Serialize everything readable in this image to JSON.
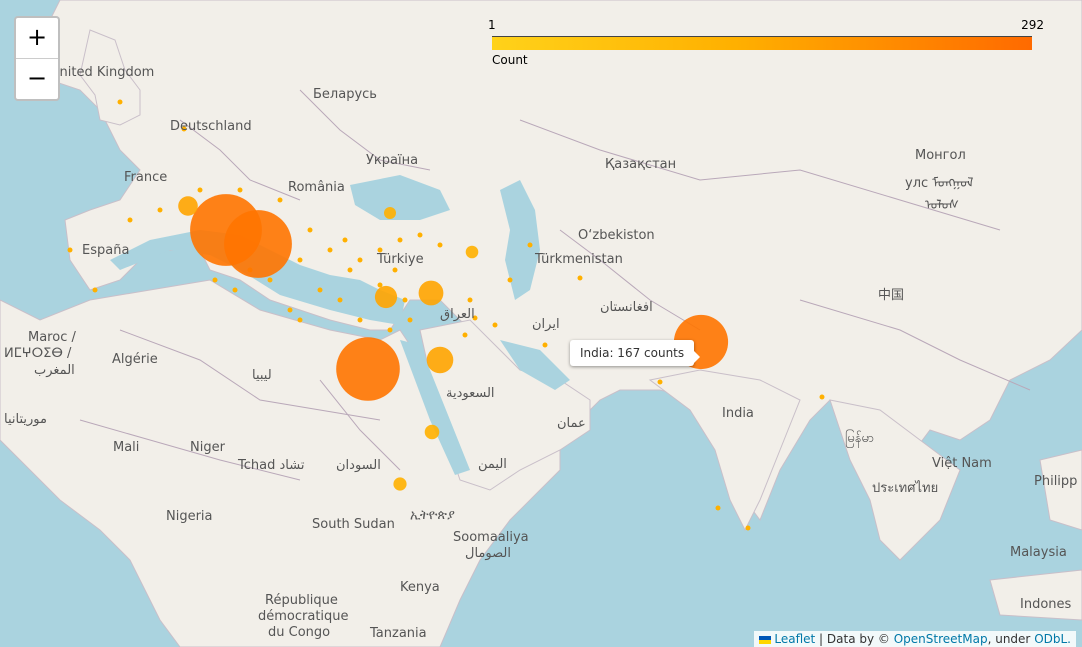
{
  "legend": {
    "min": "1",
    "max": "292",
    "caption": "Count"
  },
  "tooltip": {
    "text": "India: 167 counts"
  },
  "zoom": {
    "in_label": "+",
    "out_label": "−"
  },
  "attribution": {
    "leaflet": "Leaflet",
    "data_by": "| Data by ©",
    "osm": "OpenStreetMap",
    "under": ", under",
    "license": "ODbL."
  },
  "colors": {
    "water": "#aad3df",
    "land": "#f2efe9",
    "border": "#b9a8b9",
    "small": "#ffb000",
    "medium": "#ffa400",
    "large": "#ff7400"
  },
  "labels": [
    {
      "id": "uk",
      "text": "United Kingdom"
    },
    {
      "id": "belarus",
      "text": "Беларусь"
    },
    {
      "id": "deutschland",
      "text": "Deutschland"
    },
    {
      "id": "ukraina",
      "text": "Україна"
    },
    {
      "id": "kazakhstan",
      "text": "Қазақстан"
    },
    {
      "id": "mongol",
      "text": "Монгол"
    },
    {
      "id": "mongol2",
      "text": "улс ᠮᠣᠩᠭᠣᠯ"
    },
    {
      "id": "mongol3",
      "text": "ᠤᠯᠤᠰ"
    },
    {
      "id": "france",
      "text": "France"
    },
    {
      "id": "romania",
      "text": "România"
    },
    {
      "id": "espana",
      "text": "España"
    },
    {
      "id": "uzbek",
      "text": "O‘zbekiston"
    },
    {
      "id": "turkiye",
      "text": "Türkiye"
    },
    {
      "id": "turkmen",
      "text": "Türkmenistan"
    },
    {
      "id": "china",
      "text": "中国"
    },
    {
      "id": "afghan",
      "text": "افغانستان"
    },
    {
      "id": "iraq",
      "text": "العراق"
    },
    {
      "id": "iran",
      "text": "ایران"
    },
    {
      "id": "maroc",
      "text": "Maroc /"
    },
    {
      "id": "maroc2",
      "text": "ⵍⵎⵖⵔⵉⴱ /"
    },
    {
      "id": "maroc3",
      "text": "المغرب"
    },
    {
      "id": "algerie",
      "text": "Algérie"
    },
    {
      "id": "libya",
      "text": "ليبيا"
    },
    {
      "id": "saudi",
      "text": "السعودية"
    },
    {
      "id": "oman",
      "text": "عمان"
    },
    {
      "id": "india",
      "text": "India"
    },
    {
      "id": "mauritania",
      "text": "موريتانيا"
    },
    {
      "id": "mali",
      "text": "Mali"
    },
    {
      "id": "niger",
      "text": "Niger"
    },
    {
      "id": "tchad",
      "text": "Tchad تشاد"
    },
    {
      "id": "sudan",
      "text": "السودان"
    },
    {
      "id": "yemen",
      "text": "اليمن"
    },
    {
      "id": "myanmar",
      "text": "မြန်မာ"
    },
    {
      "id": "vietnam",
      "text": "Việt Nam"
    },
    {
      "id": "thailand",
      "text": "ประเทศไทย"
    },
    {
      "id": "philippines",
      "text": "Philipp"
    },
    {
      "id": "nigeria",
      "text": "Nigeria"
    },
    {
      "id": "southsudan",
      "text": "South Sudan"
    },
    {
      "id": "ethiopia",
      "text": "ኢትዮጵያ"
    },
    {
      "id": "somalia",
      "text": "Soomaaliya"
    },
    {
      "id": "somalia2",
      "text": "الصومال"
    },
    {
      "id": "kenya",
      "text": "Kenya"
    },
    {
      "id": "malaysia",
      "text": "Malaysia"
    },
    {
      "id": "rdc",
      "text": "République"
    },
    {
      "id": "rdc2",
      "text": "démocratique"
    },
    {
      "id": "rdc3",
      "text": "du Congo"
    },
    {
      "id": "tanzania",
      "text": "Tanzania"
    },
    {
      "id": "indonesia",
      "text": "Indones"
    }
  ],
  "markers": [
    {
      "name": "India",
      "count": 167
    },
    {
      "name": "Italy",
      "count": 292
    },
    {
      "name": "Italy-south",
      "count": 260
    },
    {
      "name": "Egypt",
      "count": 230
    },
    {
      "name": "Saudi Arabia",
      "count": 40
    },
    {
      "name": "Syria",
      "count": 35
    },
    {
      "name": "Cyprus",
      "count": 28
    },
    {
      "name": "France-south",
      "count": 22
    },
    {
      "name": "Sudan",
      "count": 12
    },
    {
      "name": "Ethiopia",
      "count": 10
    },
    {
      "name": "Turkey-east",
      "count": 9
    },
    {
      "name": "Black Sea",
      "count": 8
    }
  ]
}
